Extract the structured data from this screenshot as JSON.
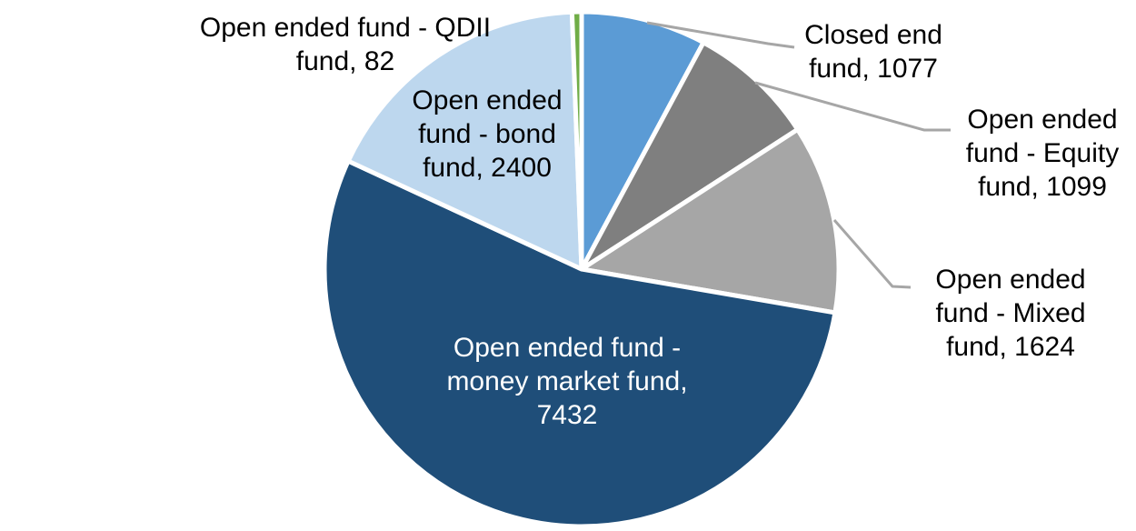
{
  "chart_data": {
    "type": "pie",
    "legend_position": "none",
    "start_angle_deg": 0,
    "direction": "clockwise",
    "data_label_format": "category name, value",
    "slices": [
      {
        "key": "closed-end-fund",
        "name": "Closed end fund",
        "value": 1077,
        "color": "#5b9bd5"
      },
      {
        "key": "open-ended-fund-equity-fund",
        "name": "Open ended fund - Equity fund",
        "value": 1099,
        "color": "#7f7f7f"
      },
      {
        "key": "open-ended-fund-mixed-fund",
        "name": "Open ended fund - Mixed fund",
        "value": 1624,
        "color": "#a6a6a6"
      },
      {
        "key": "open-ended-fund-money-market-fund",
        "name": "Open ended fund - money market fund",
        "value": 7432,
        "color": "#1f4e79"
      },
      {
        "key": "open-ended-fund-bond-fund",
        "name": "Open ended fund - bond fund",
        "value": 2400,
        "color": "#bdd7ee"
      },
      {
        "key": "open-ended-fund-qdii-fund",
        "name": "Open ended fund - QDII fund",
        "value": 82,
        "color": "#70ad47"
      }
    ]
  },
  "labels": {
    "qdii": {
      "lines": [
        "Open ended fund - QDII",
        "fund, 82"
      ]
    },
    "bond": {
      "lines": [
        "Open ended",
        "fund - bond",
        "fund, 2400"
      ]
    },
    "closed_end": {
      "lines": [
        "Closed end",
        "fund, 1077"
      ]
    },
    "equity": {
      "lines": [
        "Open ended",
        "fund - Equity",
        "fund, 1099"
      ]
    },
    "mixed": {
      "lines": [
        "Open ended",
        "fund - Mixed",
        "fund, 1624"
      ]
    },
    "money_market": {
      "lines": [
        "Open ended fund -",
        "money market fund,",
        "7432"
      ]
    }
  },
  "styles": {
    "leader_line_color": "#a6a6a6",
    "slice_border_color": "#ffffff",
    "label_text_color": "#000000",
    "inside_label_text_color": "#ffffff",
    "background_color": "#ffffff"
  }
}
